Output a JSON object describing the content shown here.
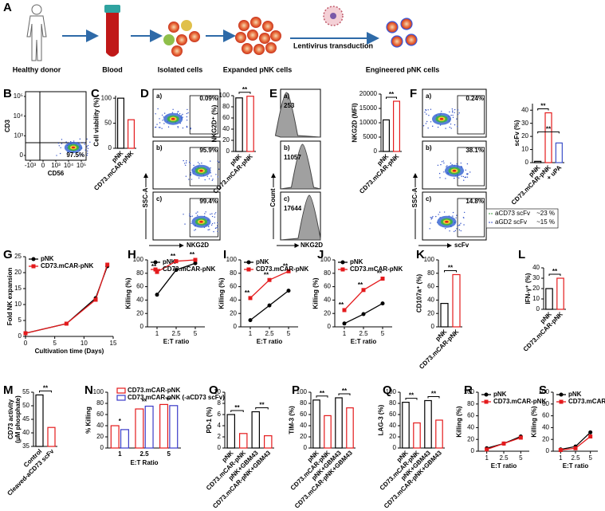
{
  "schematic": {
    "panel": "A",
    "steps": [
      "Healthy donor",
      "Blood",
      "Isolated cells",
      "Expanded pNK cells",
      "Engineered pNK cells"
    ],
    "arrow_label": "Lentivirus transduction"
  },
  "flow_B": {
    "panel": "B",
    "ylabel": "CD3",
    "xlabel": "CD56",
    "yticks": [
      {
        "value": 100000,
        "label": "10⁵"
      },
      {
        "value": 10000,
        "label": "10⁴"
      },
      {
        "value": 1000,
        "label": "10³"
      },
      0
    ],
    "xticks": [
      {
        "value": -1000,
        "label": "-10³"
      },
      0,
      {
        "value": 1000,
        "label": "10³"
      },
      {
        "value": 10000,
        "label": "10⁴"
      },
      {
        "value": 100000,
        "label": "10⁵"
      }
    ],
    "value": "97.5%"
  },
  "flow_D": {
    "panel": "D",
    "ylabel": "SSC-A",
    "xlabel": "NKG2D",
    "plots": [
      {
        "label": "a)",
        "value": "0.09%"
      },
      {
        "label": "b)",
        "value": "95.9%"
      },
      {
        "label": "c)",
        "value": "99.4%"
      }
    ]
  },
  "hist_E": {
    "panel": "E",
    "ylabel": "Count",
    "xlabel": "NKG2D",
    "plots": [
      {
        "label": "a)",
        "value": "253"
      },
      {
        "label": "b)",
        "value": "11057"
      },
      {
        "label": "c)",
        "value": "17644"
      }
    ]
  },
  "flow_F": {
    "panel": "F",
    "ylabel": "SSC-A",
    "xlabel": "scFv",
    "plots": [
      {
        "label": "a)",
        "value": "0.24%"
      },
      {
        "label": "b)",
        "value": "38.1%"
      },
      {
        "label": "c)",
        "value": "14.8%"
      }
    ]
  },
  "chart_data": [
    {
      "panel": "C",
      "type": "bar",
      "ylabel": "Cell viability (%)",
      "categories": [
        "pNK",
        "CD73.mCAR-pNK"
      ],
      "values": [
        100,
        57
      ],
      "colors": [
        "#000000",
        "#e41a1c"
      ],
      "ylim": [
        0,
        105
      ],
      "yticks": [
        0,
        50,
        100
      ]
    },
    {
      "type": "bar",
      "ylabel": "NKG2D⁺ (%)",
      "categories": [
        "pNK",
        "CD73.mCAR-pNK"
      ],
      "values": [
        96,
        99
      ],
      "colors": [
        "#000000",
        "#e41a1c"
      ],
      "ylim": [
        0,
        100
      ],
      "yticks": [
        0,
        20,
        40,
        60,
        80,
        100
      ],
      "significance": [
        "**"
      ]
    },
    {
      "type": "bar",
      "ylabel": "NKG2D (MFI)",
      "categories": [
        "pNK",
        "CD73.mCAR-pNK"
      ],
      "values": [
        11000,
        17500
      ],
      "colors": [
        "#000000",
        "#e41a1c"
      ],
      "ylim": [
        0,
        20000
      ],
      "yticks": [
        0,
        5000,
        10000,
        15000,
        20000
      ],
      "significance": [
        "**"
      ]
    },
    {
      "type": "bar",
      "ylabel": "scFv (%)",
      "categories": [
        "pNK",
        "CD73.mCAR-pNK",
        "+ uPA"
      ],
      "values": [
        1,
        38,
        15
      ],
      "colors": [
        "#000000",
        "#e41a1c",
        "#3b4fc8"
      ],
      "ylim": [
        0,
        45
      ],
      "yticks": [
        0,
        10,
        20,
        30,
        40
      ],
      "significance": [
        "**",
        "**"
      ],
      "scfv_legend": [
        {
          "name": "aCD73 scFv",
          "value": "~23 %",
          "color": "#3a9a3a"
        },
        {
          "name": "aGD2 scFv",
          "value": "~15 %",
          "color": "#3b4fc8"
        }
      ]
    },
    {
      "panel": "G",
      "type": "line",
      "ylabel": "Fold NK expansion",
      "xlabel": "Cultivation time (Days)",
      "x": [
        0,
        7,
        12,
        14
      ],
      "xlim": [
        0,
        15
      ],
      "xticks": [
        0,
        5,
        10,
        15
      ],
      "ylim": [
        0,
        25
      ],
      "yticks": [
        0,
        5,
        10,
        15,
        20,
        25
      ],
      "legend": "top-left",
      "series": [
        {
          "name": "pNK",
          "color": "#000000",
          "marker": "circle",
          "values": [
            1,
            4,
            12,
            22
          ]
        },
        {
          "name": "CD73.mCAR-pNK",
          "color": "#e41a1c",
          "marker": "square",
          "values": [
            1,
            4,
            11.5,
            22.5
          ]
        }
      ]
    },
    {
      "panel": "H",
      "type": "line",
      "ylabel": "Killing (%)",
      "xlabel": "E:T ratio",
      "categories": [
        "1",
        "2.5",
        "5"
      ],
      "ylim": [
        0,
        100
      ],
      "yticks": [
        0,
        20,
        40,
        60,
        80,
        100
      ],
      "legend": "top-left",
      "series": [
        {
          "name": "pNK",
          "color": "#000000",
          "marker": "circle",
          "values": [
            48,
            85,
            95
          ]
        },
        {
          "name": "CD73.mCAR-pNK",
          "color": "#e41a1c",
          "marker": "square",
          "values": [
            82,
            98,
            100
          ]
        }
      ],
      "significance": [
        "**",
        "**",
        "**"
      ]
    },
    {
      "panel": "I",
      "type": "line",
      "ylabel": "Killing (%)",
      "xlabel": "E:T ratio",
      "categories": [
        "1",
        "2.5",
        "5"
      ],
      "ylim": [
        0,
        100
      ],
      "yticks": [
        0,
        20,
        40,
        60,
        80,
        100
      ],
      "legend": "top-left",
      "series": [
        {
          "name": "pNK",
          "color": "#000000",
          "marker": "circle",
          "values": [
            10,
            32,
            54
          ]
        },
        {
          "name": "CD73.mCAR-pNK",
          "color": "#e41a1c",
          "marker": "square",
          "values": [
            43,
            70,
            83
          ]
        }
      ],
      "significance": [
        "**",
        "**",
        "**"
      ]
    },
    {
      "panel": "J",
      "type": "line",
      "ylabel": "Killing (%)",
      "xlabel": "E:T ratio",
      "categories": [
        "1",
        "2.5",
        "5"
      ],
      "ylim": [
        0,
        100
      ],
      "yticks": [
        0,
        20,
        40,
        60,
        80,
        100
      ],
      "legend": "top-left",
      "series": [
        {
          "name": "pNK",
          "color": "#000000",
          "marker": "circle",
          "values": [
            5,
            19,
            35
          ]
        },
        {
          "name": "CD73.mCAR-pNK",
          "color": "#e41a1c",
          "marker": "square",
          "values": [
            25,
            55,
            72
          ]
        }
      ],
      "significance": [
        "**",
        "**",
        "**"
      ]
    },
    {
      "panel": "K",
      "type": "bar",
      "ylabel": "CD107a⁺ (%)",
      "categories": [
        "pNK",
        "CD73.mCAR-pNK"
      ],
      "values": [
        35,
        78
      ],
      "colors": [
        "#000000",
        "#e41a1c"
      ],
      "ylim": [
        0,
        100
      ],
      "yticks": [
        0,
        20,
        40,
        60,
        80,
        100
      ],
      "significance": [
        "**"
      ]
    },
    {
      "panel": "L",
      "type": "bar",
      "ylabel": "IFN-γ⁺ (%)",
      "categories": [
        "pNK",
        "CD73.mCAR-pNK"
      ],
      "values": [
        20,
        30
      ],
      "colors": [
        "#000000",
        "#e41a1c"
      ],
      "ylim": [
        0,
        40
      ],
      "yticks": [
        0,
        10,
        20,
        30,
        40
      ],
      "significance": [
        "**"
      ]
    },
    {
      "panel": "M",
      "type": "bar",
      "ylabel": [
        "CD73 activity",
        "(μM phosphate)"
      ],
      "categories": [
        "Control",
        "Cleaved-aCD73 scFv"
      ],
      "values": [
        54,
        42
      ],
      "colors": [
        "#000000",
        "#e41a1c"
      ],
      "ylim": [
        35,
        55
      ],
      "yticks": [
        35,
        40,
        45,
        50,
        55
      ],
      "significance": [
        "**"
      ]
    },
    {
      "panel": "N",
      "type": "bar",
      "ylabel": "% Killing",
      "xlabel": "E:T Ratio",
      "categories": [
        "1",
        "2.5",
        "5"
      ],
      "ylim": [
        0,
        100
      ],
      "yticks": [
        0,
        20,
        40,
        60,
        80,
        100
      ],
      "legend": "top-left",
      "series": [
        {
          "name": "CD73.mCAR-pNK",
          "color": "#e41a1c",
          "values": [
            40,
            70,
            78
          ]
        },
        {
          "name": "CD73.mCAR-pNK (-aCD73 scFv)",
          "color": "#3b3bc8",
          "values": [
            33,
            75,
            76
          ]
        }
      ],
      "significance": [
        "*",
        "**",
        "**"
      ]
    },
    {
      "panel": "O",
      "type": "bar",
      "ylabel": "PD-1 (%)",
      "categories": [
        "pNK",
        "CD73.mCAR-pNK",
        "pNK+GBM43",
        "CD73.mCAR-pNK+GBM43"
      ],
      "values": [
        6,
        2.6,
        6.5,
        2.2
      ],
      "colors": [
        "#000000",
        "#e41a1c",
        "#000000",
        "#e41a1c"
      ],
      "ylim": [
        0,
        10
      ],
      "yticks": [
        0,
        2,
        4,
        6,
        8,
        10
      ],
      "significance": [
        "**",
        "**"
      ]
    },
    {
      "panel": "P",
      "type": "bar",
      "ylabel": "TIM-3 (%)",
      "categories": [
        "pNK",
        "CD73.mCAR-pNK",
        "pNK+GBM43",
        "CD73.mCAR-pNK+GBM43"
      ],
      "values": [
        86,
        58,
        90,
        72
      ],
      "colors": [
        "#000000",
        "#e41a1c",
        "#000000",
        "#e41a1c"
      ],
      "ylim": [
        0,
        100
      ],
      "yticks": [
        0,
        20,
        40,
        60,
        80,
        100
      ],
      "significance": [
        "**",
        "**"
      ]
    },
    {
      "panel": "Q",
      "type": "bar",
      "ylabel": "LAG-3 (%)",
      "categories": [
        "pNK",
        "CD73.mCAR-pNK",
        "pNK+GBM43",
        "CD73.mCAR-pNK+GBM43"
      ],
      "values": [
        82,
        45,
        85,
        50
      ],
      "colors": [
        "#000000",
        "#e41a1c",
        "#000000",
        "#e41a1c"
      ],
      "ylim": [
        0,
        100
      ],
      "yticks": [
        0,
        20,
        40,
        60,
        80,
        100
      ],
      "significance": [
        "**",
        "**"
      ]
    },
    {
      "panel": "R",
      "type": "line",
      "ylabel": "Killing (%)",
      "xlabel": "E:T ratio",
      "categories": [
        "1",
        "2.5",
        "5"
      ],
      "ylim": [
        0,
        100
      ],
      "yticks": [
        0,
        20,
        40,
        60,
        80,
        100
      ],
      "legend": "top-left",
      "series": [
        {
          "name": "pNK",
          "color": "#000000",
          "marker": "circle",
          "values": [
            5,
            13,
            25
          ]
        },
        {
          "name": "CD73.mCAR-pNK",
          "color": "#e41a1c",
          "marker": "square",
          "values": [
            3,
            13,
            23
          ]
        }
      ]
    },
    {
      "panel": "S",
      "type": "line",
      "ylabel": "Killing (%)",
      "xlabel": "E:T ratio",
      "categories": [
        "1",
        "2.5",
        "5"
      ],
      "ylim": [
        0,
        100
      ],
      "yticks": [
        0,
        20,
        40,
        60,
        80,
        100
      ],
      "legend": "top-left",
      "series": [
        {
          "name": "pNK",
          "color": "#000000",
          "marker": "circle",
          "values": [
            3,
            8,
            32
          ]
        },
        {
          "name": "CD73.mCAR-pNK",
          "color": "#e41a1c",
          "marker": "square",
          "values": [
            2,
            5,
            25
          ]
        }
      ]
    }
  ]
}
